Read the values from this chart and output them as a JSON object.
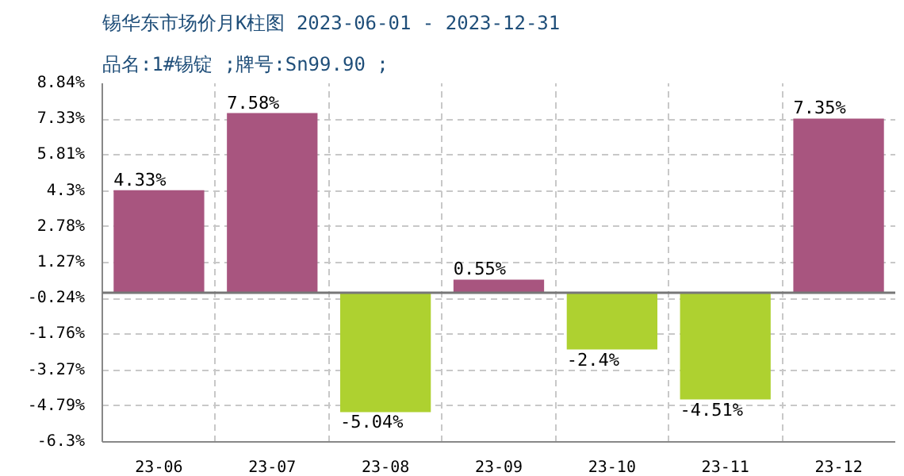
{
  "chart_data": {
    "type": "bar",
    "title": "锡华东市场价月K柱图 2023-06-01 - 2023-12-31",
    "subtitle": "品名:1#锡锭 ;牌号:Sn99.90 ;",
    "categories": [
      "23-06",
      "23-07",
      "23-08",
      "23-09",
      "23-10",
      "23-11",
      "23-12"
    ],
    "values": [
      4.33,
      7.58,
      -5.04,
      0.55,
      -2.4,
      -4.51,
      7.35
    ],
    "colors": [
      "#a8557f",
      "#a8557f",
      "#aed130",
      "#a8557f",
      "#aed130",
      "#aed130",
      "#a8557f"
    ],
    "value_labels": [
      "4.33%",
      "7.58%",
      "-5.04%",
      "0.55%",
      "-2.4%",
      "-4.51%",
      "7.35%"
    ],
    "ylim": [
      -6.3,
      8.84
    ],
    "yticks": [
      {
        "value": 8.84,
        "label": "8.84%"
      },
      {
        "value": 7.33,
        "label": "7.33%"
      },
      {
        "value": 5.81,
        "label": "5.81%"
      },
      {
        "value": 4.3,
        "label": "4.3%"
      },
      {
        "value": 2.78,
        "label": "2.78%"
      },
      {
        "value": 1.27,
        "label": "1.27%"
      },
      {
        "value": -0.24,
        "label": "-0.24%"
      },
      {
        "value": -1.76,
        "label": "-1.76%"
      },
      {
        "value": -3.27,
        "label": "-3.27%"
      },
      {
        "value": -4.79,
        "label": "-4.79%"
      },
      {
        "value": -6.3,
        "label": "-6.3%"
      }
    ],
    "ref_lines": [
      {
        "axis": "y",
        "value": 0,
        "color": "#777777"
      }
    ],
    "grid": true
  }
}
